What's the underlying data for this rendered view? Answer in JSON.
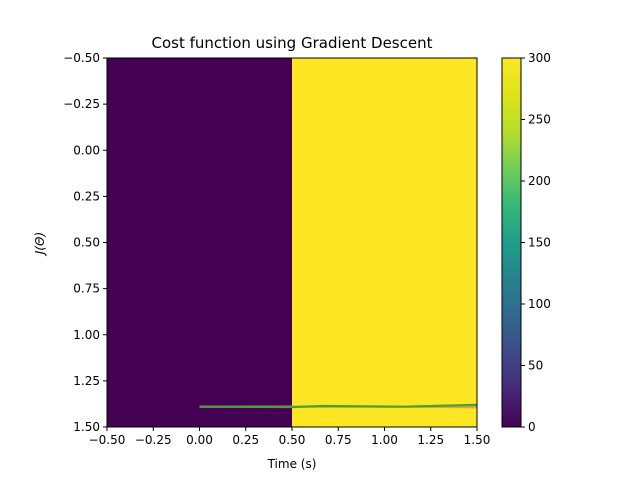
{
  "chart_data": {
    "type": "heatmap",
    "title": "Cost function using Gradient Descent",
    "xlabel": "Time (s)",
    "ylabel": "J(Θ)",
    "xlim": [
      -0.5,
      1.5
    ],
    "ylim": [
      1.5,
      -0.5
    ],
    "y_inverted": true,
    "grid": false,
    "colormap": "viridis",
    "x_ticks": [
      -0.5,
      -0.25,
      0.0,
      0.25,
      0.5,
      0.75,
      1.0,
      1.25,
      1.5
    ],
    "x_tick_labels": [
      "−0.50",
      "−0.25",
      "0.00",
      "0.25",
      "0.50",
      "0.75",
      "1.00",
      "1.25",
      "1.50"
    ],
    "y_ticks": [
      -0.5,
      -0.25,
      0.0,
      0.25,
      0.5,
      0.75,
      1.0,
      1.25,
      1.5
    ],
    "y_tick_labels": [
      "−0.50",
      "−0.25",
      "0.00",
      "0.25",
      "0.50",
      "0.75",
      "1.00",
      "1.25",
      "1.50"
    ],
    "heatmap": {
      "cells": [
        {
          "x_range": [
            -0.5,
            0.5
          ],
          "y_range": [
            -0.5,
            1.5
          ],
          "value": 0,
          "color": "#440154"
        },
        {
          "x_range": [
            0.5,
            1.5
          ],
          "y_range": [
            -0.5,
            1.5
          ],
          "value": 300,
          "color": "#fde725"
        }
      ]
    },
    "colorbar": {
      "min": 0,
      "max": 300,
      "ticks": [
        0,
        50,
        100,
        150,
        200,
        250,
        300
      ],
      "tick_labels": [
        "0",
        "50",
        "100",
        "150",
        "200",
        "250",
        "300"
      ]
    },
    "series": [
      {
        "color": "#e8a03a",
        "x": [
          0.0,
          0.5,
          0.67,
          1.1,
          1.5
        ],
        "y": [
          1.39,
          1.39,
          1.39,
          1.39,
          1.393
        ]
      },
      {
        "color": "#3fa53a",
        "x": [
          0.0,
          0.5,
          0.67,
          1.1,
          1.5
        ],
        "y": [
          1.39,
          1.392,
          1.386,
          1.39,
          1.38
        ]
      }
    ]
  }
}
